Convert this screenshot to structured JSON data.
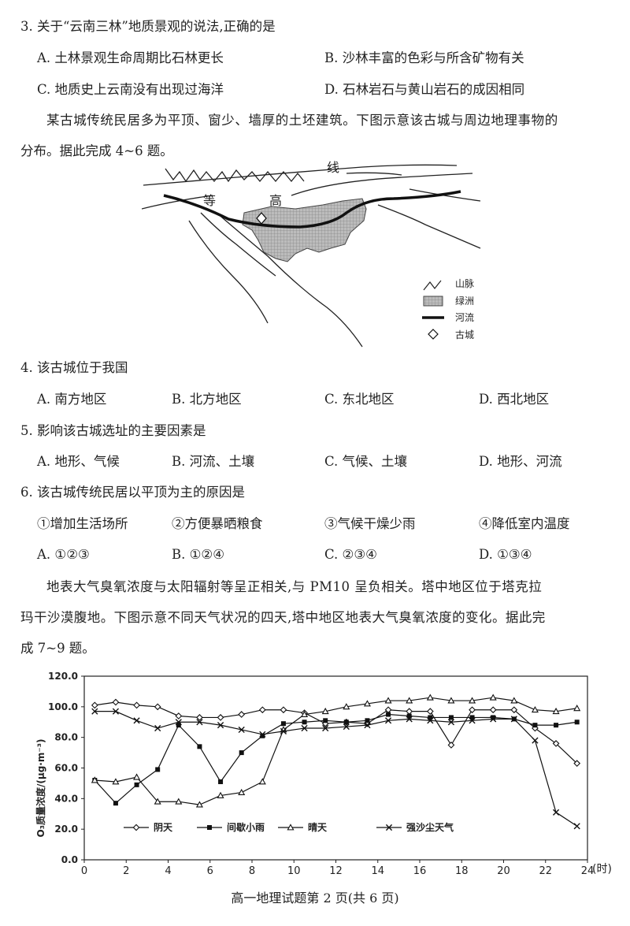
{
  "q3": {
    "stem": "3. 关于“云南三林”地质景观的说法,正确的是",
    "options": [
      "A. 土林景观生命周期比石林更长",
      "B. 沙林丰富的色彩与所含矿物有关",
      "C. 地质史上云南没有出现过海洋",
      "D. 石林岩石与黄山岩石的成因相同"
    ]
  },
  "intro1": {
    "line1": "某古城传统民居多为平顶、窗少、墙厚的土坯建筑。下图示意该古城与周边地理事物的",
    "line2": "分布。据此完成 4~6 题。"
  },
  "map": {
    "labels": {
      "deng": "等",
      "gao": "高",
      "xian": "线"
    },
    "legend": [
      "山脉",
      "绿洲",
      "河流",
      "古城"
    ]
  },
  "q4": {
    "stem": "4. 该古城位于我国",
    "options": [
      "A. 南方地区",
      "B. 北方地区",
      "C. 东北地区",
      "D. 西北地区"
    ]
  },
  "q5": {
    "stem": "5. 影响该古城选址的主要因素是",
    "options": [
      "A. 地形、气候",
      "B. 河流、土壤",
      "C. 气候、土壤",
      "D. 地形、河流"
    ]
  },
  "q6": {
    "stem": "6. 该古城传统民居以平顶为主的原因是",
    "items": [
      "①增加生活场所",
      "②方便暴晒粮食",
      "③气候干燥少雨",
      "④降低室内温度"
    ],
    "options": [
      "A. ①②③",
      "B. ①②④",
      "C. ②③④",
      "D. ①③④"
    ]
  },
  "intro2": {
    "line1": "地表大气臭氧浓度与太阳辐射等呈正相关,与 PM10 呈负相关。塔中地区位于塔克拉",
    "line2": "玛干沙漠腹地。下图示意不同天气状况的四天,塔中地区地表大气臭氧浓度的变化。据此完",
    "line3": "成 7~9 题。"
  },
  "chart_data": {
    "type": "line",
    "ylabel": "O₃质量浓度/(μg·m⁻³)",
    "xlabel": "(时)",
    "xlim": [
      0,
      24
    ],
    "ylim": [
      0,
      120
    ],
    "x_ticks": [
      "0",
      "2",
      "4",
      "6",
      "8",
      "10",
      "12",
      "14",
      "16",
      "18",
      "20",
      "22",
      "24"
    ],
    "y_ticks": [
      "0.0",
      "20.0",
      "40.0",
      "60.0",
      "80.0",
      "100.0",
      "120.0"
    ],
    "grid": false,
    "legend_position": "bottom",
    "series": [
      {
        "name": "阴天",
        "marker": "diamond",
        "x": [
          0.5,
          1.5,
          2.5,
          3.5,
          4.5,
          5.5,
          6.5,
          7.5,
          8.5,
          9.5,
          10.5,
          11.5,
          12.5,
          13.5,
          14.5,
          15.5,
          16.5,
          17.5,
          18.5,
          19.5,
          20.5,
          21.5,
          22.5,
          23.5
        ],
        "values": [
          101,
          103,
          101,
          100,
          94,
          93,
          93,
          95,
          98,
          98,
          96,
          89,
          90,
          89,
          98,
          97,
          97,
          75,
          98,
          98,
          98,
          86,
          76,
          63
        ]
      },
      {
        "name": "间歇小雨",
        "marker": "square",
        "x": [
          0.5,
          1.5,
          2.5,
          3.5,
          4.5,
          5.5,
          6.5,
          7.5,
          8.5,
          9.5,
          10.5,
          11.5,
          12.5,
          13.5,
          14.5,
          15.5,
          16.5,
          17.5,
          18.5,
          19.5,
          20.5,
          21.5,
          22.5,
          23.5
        ],
        "values": [
          52,
          37,
          49,
          59,
          88,
          74,
          51,
          70,
          81,
          89,
          90,
          91,
          90,
          91,
          95,
          94,
          93,
          93,
          93,
          93,
          92,
          88,
          88,
          90
        ]
      },
      {
        "name": "晴天",
        "marker": "triangle",
        "x": [
          0.5,
          1.5,
          2.5,
          3.5,
          4.5,
          5.5,
          6.5,
          7.5,
          8.5,
          9.5,
          10.5,
          11.5,
          12.5,
          13.5,
          14.5,
          15.5,
          16.5,
          17.5,
          18.5,
          19.5,
          20.5,
          21.5,
          22.5,
          23.5
        ],
        "values": [
          52,
          51,
          54,
          38,
          38,
          36,
          42,
          44,
          51,
          85,
          95,
          97,
          100,
          102,
          104,
          104,
          106,
          104,
          104,
          106,
          104,
          98,
          97,
          99
        ]
      },
      {
        "name": "强沙尘天气",
        "marker": "x",
        "x": [
          0.5,
          1.5,
          2.5,
          3.5,
          4.5,
          5.5,
          6.5,
          7.5,
          8.5,
          9.5,
          10.5,
          11.5,
          12.5,
          13.5,
          14.5,
          15.5,
          16.5,
          17.5,
          18.5,
          19.5,
          20.5,
          21.5,
          22.5,
          23.5
        ],
        "values": [
          97,
          97,
          91,
          86,
          90,
          90,
          88,
          85,
          82,
          84,
          86,
          86,
          87,
          88,
          91,
          92,
          91,
          90,
          91,
          92,
          92,
          78,
          31,
          22
        ]
      }
    ]
  },
  "footer": {
    "text": "高一地理试题第 2 页(共 6 页)"
  }
}
